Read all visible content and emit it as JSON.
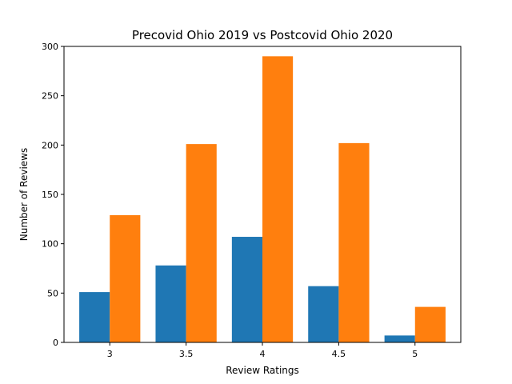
{
  "chart_data": {
    "type": "bar",
    "title": "Precovid Ohio 2019 vs Postcovid Ohio 2020",
    "xlabel": "Review Ratings",
    "ylabel": "Number of Reviews",
    "categories": [
      "3",
      "3.5",
      "4",
      "4.5",
      "5"
    ],
    "series": [
      {
        "color": "#1f77b4",
        "values": [
          51,
          78,
          107,
          57,
          7
        ]
      },
      {
        "color": "#ff7f0e",
        "values": [
          129,
          201,
          290,
          202,
          36
        ]
      }
    ],
    "ylim": [
      0,
      300
    ],
    "yticks": [
      0,
      50,
      100,
      150,
      200,
      250,
      300
    ],
    "grid": false,
    "legend": "none"
  }
}
